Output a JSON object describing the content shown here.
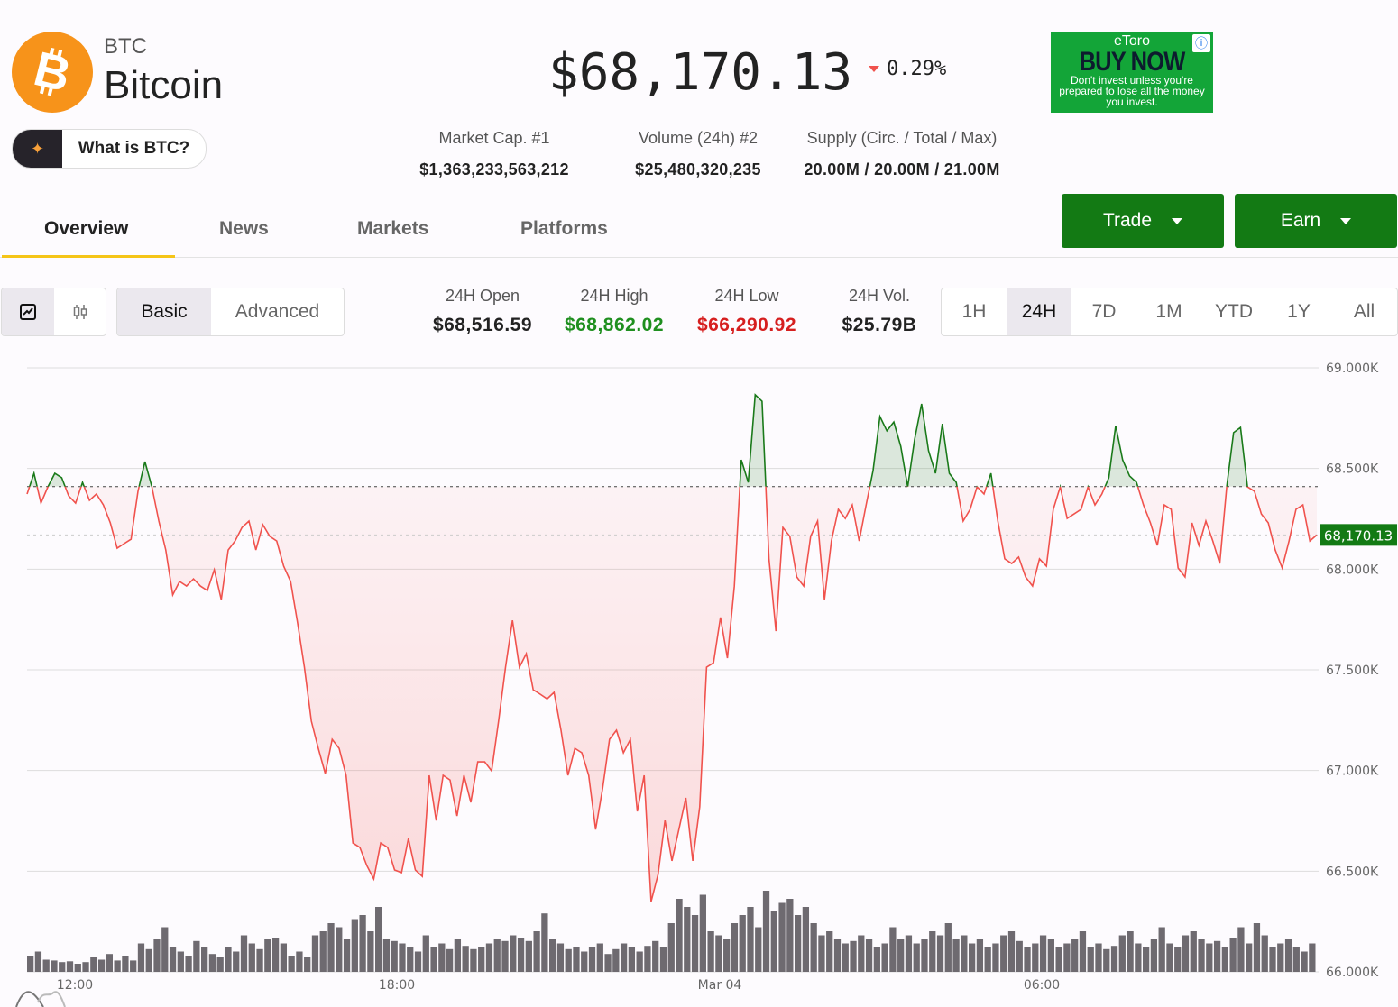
{
  "coin": {
    "symbol": "BTC",
    "name": "Bitcoin",
    "icon": "bitcoin-logo-icon",
    "what_is_label": "What is BTC?"
  },
  "price": {
    "value": "$68,170.13",
    "change": "0.29%",
    "direction": "down"
  },
  "ad": {
    "brand": "eToro",
    "headline": "BUY NOW",
    "disclaimer": "Don't invest unless you're prepared to lose all the money you invest."
  },
  "stats": [
    {
      "label": "Market Cap. #1",
      "value": "$1,363,233,563,212"
    },
    {
      "label": "Volume (24h) #2",
      "value": "$25,480,320,235"
    },
    {
      "label": "Supply (Circ. / Total / Max)",
      "value": "20.00M / 20.00M / 21.00M"
    }
  ],
  "tabs": [
    {
      "label": "Overview",
      "active": true
    },
    {
      "label": "News"
    },
    {
      "label": "Markets"
    },
    {
      "label": "Platforms"
    }
  ],
  "actions": {
    "trade": "Trade",
    "earn": "Earn"
  },
  "chart_mode": {
    "basic": "Basic",
    "advanced": "Advanced",
    "selected": "Basic",
    "chart_type_icons": [
      "line-chart-icon",
      "candlestick-icon"
    ]
  },
  "day_stats": [
    {
      "label": "24H Open",
      "value": "$68,516.59",
      "color": "#222222"
    },
    {
      "label": "24H High",
      "value": "$68,862.02",
      "color": "#1f8f1f"
    },
    {
      "label": "24H Low",
      "value": "$66,290.92",
      "color": "#d61f1f"
    },
    {
      "label": "24H Vol.",
      "value": "$25.79B",
      "color": "#222222"
    }
  ],
  "ranges": [
    "1H",
    "24H",
    "7D",
    "1M",
    "YTD",
    "1Y",
    "All"
  ],
  "selected_range": "24H",
  "colors": {
    "up": "#1a7a1a",
    "down": "#f0524d",
    "accent": "#137a14",
    "tab_underline": "#f5c518"
  },
  "chart_data": {
    "type": "line",
    "ylim": [
      66000,
      69000
    ],
    "y_ticks": [
      "69.000K",
      "68.500K",
      "68.000K",
      "67.500K",
      "67.000K",
      "66.500K",
      "66.000K"
    ],
    "y_tick_values": [
      69000,
      68500,
      68000,
      67500,
      67000,
      66500,
      66000
    ],
    "x_ticks": [
      "12:00",
      "18:00",
      "Mar 04",
      "06:00"
    ],
    "baseline": 68410,
    "current_label": "68,170.13",
    "current_value": 68170.13,
    "prices": [
      68373,
      68476,
      68328,
      68409,
      68476,
      68454,
      68364,
      68328,
      68431,
      68342,
      68373,
      68319,
      68230,
      68104,
      68127,
      68149,
      68387,
      68534,
      68409,
      68239,
      68095,
      67872,
      67939,
      67916,
      67952,
      67916,
      67894,
      67997,
      67849,
      68095,
      68140,
      68207,
      68239,
      68095,
      68221,
      68163,
      68140,
      68015,
      67939,
      67737,
      67513,
      67245,
      67110,
      66985,
      67155,
      67110,
      66976,
      66640,
      66618,
      66528,
      66461,
      66640,
      66618,
      66506,
      66493,
      66662,
      66506,
      66474,
      66976,
      66752,
      66976,
      66953,
      66774,
      66976,
      66842,
      67043,
      67043,
      66998,
      67245,
      67513,
      67746,
      67513,
      67580,
      67401,
      67379,
      67356,
      67388,
      67200,
      66976,
      67110,
      67088,
      66976,
      66707,
      66909,
      67155,
      67200,
      67088,
      67155,
      66797,
      66976,
      66349,
      66483,
      66752,
      66551,
      66707,
      66864,
      66551,
      66819,
      67513,
      67535,
      67760,
      67558,
      67916,
      68543,
      68431,
      68866,
      68834,
      68051,
      67692,
      68207,
      68163,
      67961,
      67916,
      68163,
      68239,
      67849,
      68140,
      68297,
      68252,
      68319,
      68140,
      68319,
      68490,
      68758,
      68687,
      68731,
      68610,
      68409,
      68646,
      68821,
      68588,
      68476,
      68722,
      68476,
      68431,
      68239,
      68297,
      68409,
      68373,
      68476,
      68239,
      68051,
      68028,
      68060,
      67961,
      67916,
      68051,
      68015,
      68297,
      68409,
      68252,
      68274,
      68297,
      68409,
      68319,
      68373,
      68454,
      68713,
      68543,
      68463,
      68431,
      68319,
      68230,
      68118,
      68319,
      68297,
      68006,
      67961,
      68230,
      68118,
      68239,
      68140,
      68028,
      68409,
      68678,
      68704,
      68409,
      68387,
      68274,
      68230,
      68095,
      68006,
      68140,
      68297,
      68319,
      68140,
      68170
    ],
    "volume_relative": [
      20,
      25,
      15,
      14,
      12,
      13,
      10,
      12,
      18,
      15,
      22,
      14,
      20,
      14,
      35,
      28,
      40,
      55,
      30,
      25,
      20,
      38,
      30,
      22,
      18,
      30,
      25,
      45,
      35,
      28,
      40,
      42,
      35,
      20,
      25,
      18,
      45,
      50,
      60,
      55,
      40,
      65,
      70,
      50,
      80,
      40,
      38,
      35,
      30,
      25,
      45,
      30,
      35,
      28,
      40,
      32,
      28,
      30,
      35,
      40,
      38,
      45,
      42,
      38,
      50,
      72,
      40,
      35,
      28,
      30,
      25,
      30,
      35,
      22,
      28,
      35,
      30,
      25,
      32,
      38,
      30,
      60,
      90,
      80,
      70,
      95,
      50,
      45,
      40,
      60,
      70,
      80,
      55,
      100,
      75,
      85,
      90,
      70,
      80,
      60,
      45,
      50,
      40,
      35,
      38,
      45,
      40,
      30,
      35,
      55,
      40,
      45,
      35,
      40,
      50,
      45,
      60,
      40,
      45,
      35,
      40,
      30,
      35,
      45,
      50,
      38,
      30,
      35,
      45,
      40,
      30,
      35,
      40,
      50,
      30,
      35,
      28,
      32,
      45,
      50,
      35,
      30,
      40,
      55,
      35,
      30,
      45,
      50,
      40,
      35,
      38,
      30,
      42,
      55,
      35,
      60,
      45,
      30,
      35,
      40,
      30,
      25,
      35
    ]
  }
}
